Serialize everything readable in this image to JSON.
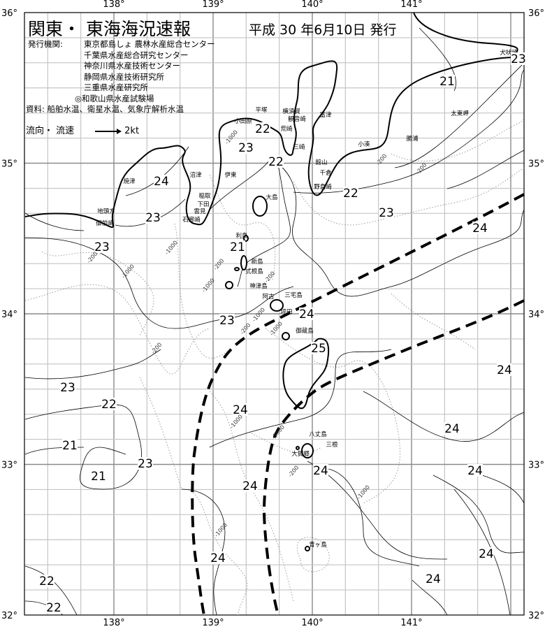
{
  "header": {
    "title": "関東・ 東海海況速報",
    "date": "平成 30 年6月10日 発行",
    "issuer_label": "発行機関:",
    "issuers": [
      "東京都島しょ 農林水産総合センター",
      "千葉県水産総合研究センター",
      "神奈川県水産技術センター",
      "静岡県水産技術研究所",
      "三重県水産研究所",
      "◎和歌山県水産試験場"
    ],
    "source": "資料: 船舶水温、衛星水温、気象庁解析水温",
    "flow_label": "流向・ 流速",
    "flow_scale": "2kt"
  },
  "axes": {
    "lon_ticks": [
      "138°",
      "139°",
      "140°",
      "141°"
    ],
    "lat_ticks": [
      "36°",
      "35°",
      "34°",
      "33°",
      "32°"
    ]
  },
  "place_names": [
    "犬吠埼",
    "太東岬",
    "勝浦",
    "小湊",
    "館山",
    "千倉",
    "野島崎",
    "富津",
    "横須賀",
    "観音崎",
    "荒崎",
    "三崎",
    "平塚",
    "小田原",
    "伊東",
    "稲取",
    "下田",
    "雲見",
    "石廊崎",
    "沼津",
    "焼津",
    "地頭方",
    "御前崎",
    "大島",
    "利島",
    "新島",
    "式根島",
    "神津島",
    "三宅島",
    "阿古",
    "坪田",
    "御蔵島",
    "八丈島",
    "三根",
    "大賀郷",
    "青ヶ島"
  ],
  "isotherm_labels": [
    "23",
    "21",
    "22",
    "23",
    "22",
    "24",
    "22",
    "23",
    "23",
    "24",
    "23",
    "21",
    "23",
    "24",
    "25",
    "24",
    "23",
    "22",
    "24",
    "24",
    "21",
    "23",
    "21",
    "24",
    "24",
    "24",
    "24",
    "24",
    "24",
    "22",
    "22"
  ],
  "depth_labels": [
    "-1000",
    "-200",
    "-200",
    "-1000",
    "-200",
    "-1000",
    "-200",
    "-1000",
    "-200",
    "-200",
    "-200",
    "-1000",
    "-1000",
    "-1000",
    "-200",
    "-1000",
    "-1000",
    "-1000"
  ],
  "legend": {
    "kuroshio": "dashed thick line",
    "isotherm_unit": "°C"
  },
  "colors": {
    "grid_major": "#8a8a8a",
    "grid_minor": "#c4c4c4",
    "land_line": "#000000",
    "depth_line": "#9a9a9a"
  }
}
